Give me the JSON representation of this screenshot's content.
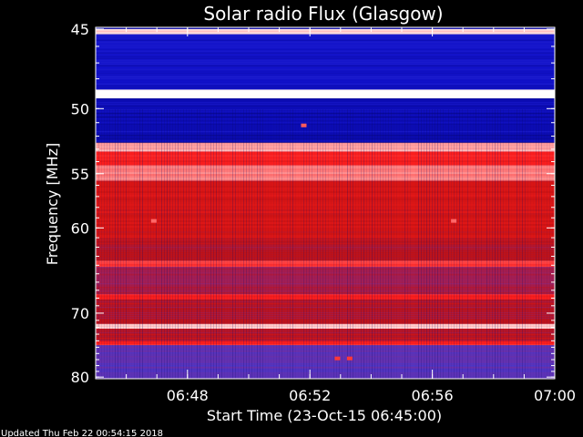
{
  "chart_data": {
    "type": "heatmap",
    "title": "Solar radio Flux (Glasgow)",
    "xlabel": "Start Time (23-Oct-15 06:45:00)",
    "ylabel": "Frequency [MHz]",
    "x_ticks": [
      "06:48",
      "06:52",
      "06:56",
      "07:00"
    ],
    "x_tick_minutes": [
      3,
      7,
      11,
      15
    ],
    "x_range_minutes": [
      0,
      15
    ],
    "y_ticks": [
      45,
      50,
      55,
      60,
      70,
      80
    ],
    "y_range_mhz": [
      44.9,
      80.3
    ],
    "y_scale": "reciprocal",
    "colormap": [
      "#000055",
      "#1010c8",
      "#3a3ad8",
      "#8a2a8a",
      "#c01010",
      "#ff2020",
      "#ff8080",
      "#ffffff"
    ],
    "bands": [
      {
        "from": 45.0,
        "to": 45.3,
        "level": 0.95
      },
      {
        "from": 45.3,
        "to": 48.7,
        "level": 0.15
      },
      {
        "from": 48.7,
        "to": 49.3,
        "level": 1.0
      },
      {
        "from": 49.3,
        "to": 52.5,
        "level": 0.12
      },
      {
        "from": 52.5,
        "to": 53.2,
        "level": 0.9
      },
      {
        "from": 53.2,
        "to": 54.3,
        "level": 0.7
      },
      {
        "from": 54.3,
        "to": 55.6,
        "level": 0.85
      },
      {
        "from": 55.6,
        "to": 61.0,
        "level": 0.62
      },
      {
        "from": 61.0,
        "to": 63.5,
        "level": 0.55
      },
      {
        "from": 63.5,
        "to": 64.2,
        "level": 0.75
      },
      {
        "from": 64.2,
        "to": 67.5,
        "level": 0.5
      },
      {
        "from": 67.5,
        "to": 68.2,
        "level": 0.7
      },
      {
        "from": 68.2,
        "to": 71.5,
        "level": 0.55
      },
      {
        "from": 71.5,
        "to": 72.2,
        "level": 0.95
      },
      {
        "from": 72.2,
        "to": 74.0,
        "level": 0.55
      },
      {
        "from": 74.0,
        "to": 74.7,
        "level": 0.7
      },
      {
        "from": 74.7,
        "to": 80.3,
        "level": 0.35
      }
    ],
    "spots": [
      {
        "minute": 6.8,
        "mhz": 51.2,
        "level": 0.8
      },
      {
        "minute": 1.9,
        "mhz": 59.3,
        "level": 0.82
      },
      {
        "minute": 11.7,
        "mhz": 59.3,
        "level": 0.82
      },
      {
        "minute": 7.9,
        "mhz": 76.8,
        "level": 0.75
      },
      {
        "minute": 8.3,
        "mhz": 76.8,
        "level": 0.75
      }
    ]
  },
  "footer": {
    "updated": "Updated Thu Feb 22 00:54:15 2018"
  }
}
